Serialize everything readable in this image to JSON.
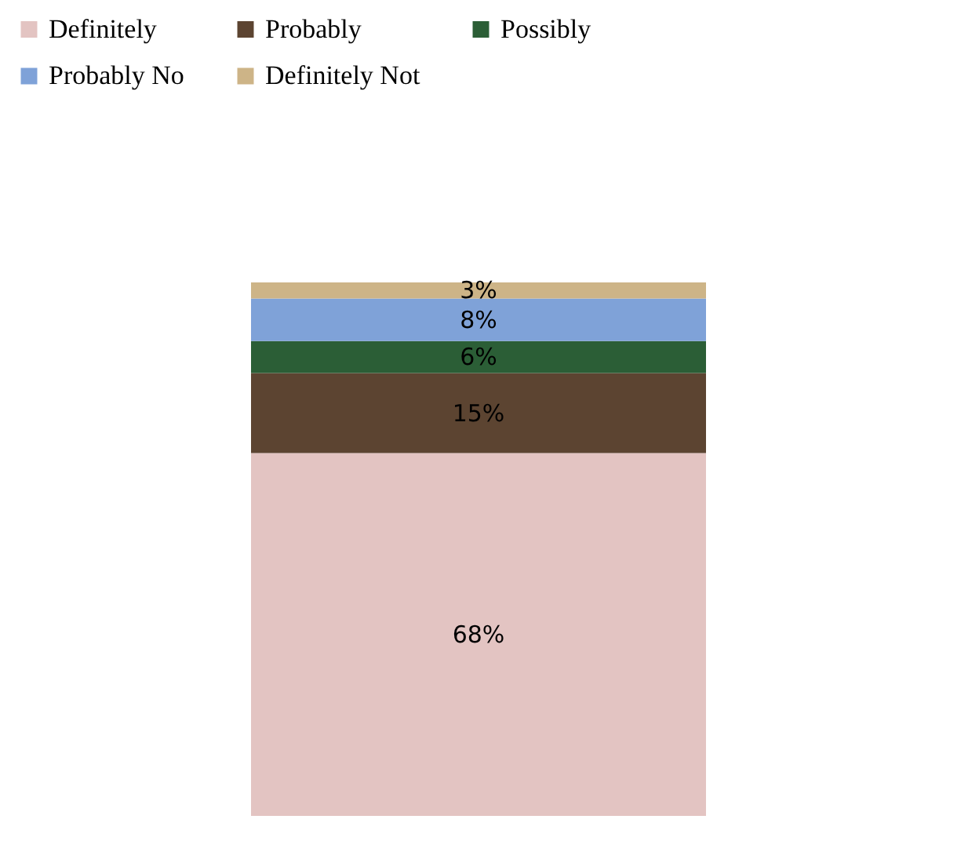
{
  "chart_data": {
    "type": "bar",
    "stacked": true,
    "categories": [
      null
    ],
    "series": [
      {
        "name": "Definitely",
        "color": "#e3c4c2",
        "values": [
          68
        ],
        "value_labels": [
          "68%"
        ]
      },
      {
        "name": "Probably",
        "color": "#5c4431",
        "values": [
          15
        ],
        "value_labels": [
          "15%"
        ]
      },
      {
        "name": "Possibly",
        "color": "#2b5e36",
        "values": [
          6
        ],
        "value_labels": [
          "6%"
        ]
      },
      {
        "name": "Probably No",
        "color": "#7fa2d8",
        "values": [
          8
        ],
        "value_labels": [
          "8%"
        ]
      },
      {
        "name": "Definitely Not",
        "color": "#cdb487",
        "values": [
          3
        ],
        "value_labels": [
          "3%"
        ]
      }
    ],
    "legend": "top"
  }
}
